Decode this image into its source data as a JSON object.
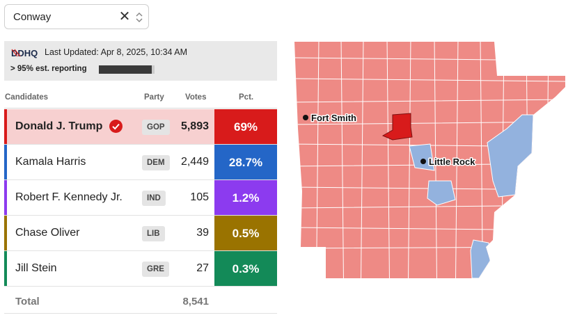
{
  "county_select": {
    "value": "Conway",
    "clear_icon": "close-icon",
    "toggle_icon": "chevron-updown-icon"
  },
  "status": {
    "logo_text": "DDHQ",
    "last_updated": "Last Updated: Apr 8, 2025, 10:34 AM",
    "reporting_label": "> 95% est. reporting",
    "reporting_fraction": 0.95
  },
  "table": {
    "headers": {
      "candidates": "Candidates",
      "party": "Party",
      "votes": "Votes",
      "pct": "Pct."
    },
    "rows": [
      {
        "name": "Donald J. Trump",
        "party": "GOP",
        "votes": "5,893",
        "pct": "69%",
        "color": "#d81b1b",
        "winner": true
      },
      {
        "name": "Kamala Harris",
        "party": "DEM",
        "votes": "2,449",
        "pct": "28.7%",
        "color": "#2466c7",
        "winner": false
      },
      {
        "name": "Robert F. Kennedy Jr.",
        "party": "IND",
        "votes": "105",
        "pct": "1.2%",
        "color": "#8c3bef",
        "winner": false
      },
      {
        "name": "Chase Oliver",
        "party": "LIB",
        "votes": "39",
        "pct": "0.5%",
        "color": "#9a7300",
        "winner": false
      },
      {
        "name": "Jill Stein",
        "party": "GRE",
        "votes": "27",
        "pct": "0.3%",
        "color": "#138a58",
        "winner": false
      }
    ],
    "total_label": "Total",
    "total_votes": "8,541"
  },
  "map": {
    "cities": [
      "Fort Smith",
      "Little Rock"
    ],
    "colors": {
      "gop_county": "#ee8a85",
      "dem_county": "#93b2de",
      "selected_county": "#d81b1b",
      "border": "#ffffff"
    }
  }
}
